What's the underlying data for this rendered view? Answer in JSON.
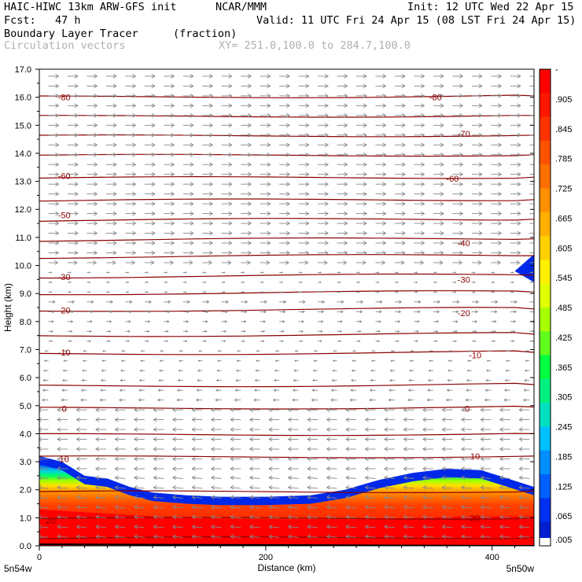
{
  "header": {
    "model": "HAIC-HIWC 13km ARW-GFS init",
    "org": "NCAR/MMM",
    "init": "Init: 12 UTC Wed 22 Apr 15",
    "fcst": "Fcst:   47 h",
    "valid": "Valid: 11 UTC Fri 24 Apr 15 (08 LST Fri 24 Apr 15)",
    "field": "Boundary Layer Tracer",
    "units": "(fraction)",
    "vectors": "Circulation vectors",
    "xy": "XY= 251.0,100.0 to 284.7,100.0"
  },
  "chart_data": {
    "type": "heatmap",
    "xlabel": "Distance (km)",
    "ylabel": "Height (km)",
    "xlim": [
      0,
      437
    ],
    "ylim": [
      0,
      17
    ],
    "x_ticks": [
      0,
      200,
      400
    ],
    "y_ticks": [
      "0.0",
      "1.0",
      "2.0",
      "3.0",
      "4.0",
      "5.0",
      "6.0",
      "7.0",
      "8.0",
      "9.0",
      "10.0",
      "11.0",
      "12.0",
      "13.0",
      "14.0",
      "15.0",
      "16.0",
      "17.0"
    ],
    "endpoint_left": "5n54w",
    "endpoint_right": "5n50w",
    "colorbar_labels": [
      "-",
      ".905",
      ".845",
      ".785",
      ".725",
      ".665",
      ".605",
      ".545",
      ".485",
      ".425",
      ".365",
      ".305",
      ".245",
      ".185",
      ".125",
      ".065",
      ".005"
    ],
    "colorbar_colors": [
      "#ff0000",
      "#ff1800",
      "#ff3400",
      "#ff5200",
      "#ff7000",
      "#ff9000",
      "#ffb000",
      "#ffd000",
      "#fff000",
      "#e0ff00",
      "#a8ff00",
      "#60ff20",
      "#00ff40",
      "#00f080",
      "#00e0c0",
      "#00c0ff",
      "#0090ff",
      "#0060ff",
      "#0030f0",
      "#0020d0"
    ],
    "contour_color": "#8b0000",
    "vector_color": "#888888",
    "temperature_contour_labels": [
      {
        "label": "-80",
        "km": 16.0,
        "x": 22
      },
      {
        "label": "-80",
        "km": 16.0,
        "x": 350
      },
      {
        "label": "-70",
        "km": 14.7,
        "x": 375
      },
      {
        "label": "-60",
        "km": 13.2,
        "x": 22
      },
      {
        "label": "-60",
        "km": 13.1,
        "x": 365
      },
      {
        "label": "-50",
        "km": 11.8,
        "x": 22
      },
      {
        "label": "-40",
        "km": 10.8,
        "x": 375
      },
      {
        "label": "-30",
        "km": 9.6,
        "x": 22
      },
      {
        "label": "-30",
        "km": 9.5,
        "x": 375
      },
      {
        "label": "-20",
        "km": 8.4,
        "x": 22
      },
      {
        "label": "-20",
        "km": 8.3,
        "x": 375
      },
      {
        "label": "-10",
        "km": 6.9,
        "x": 22
      },
      {
        "label": "-10",
        "km": 6.8,
        "x": 385
      },
      {
        "label": "0",
        "km": 4.9,
        "x": 22
      },
      {
        "label": "0",
        "km": 4.9,
        "x": 378
      },
      {
        "label": "10",
        "km": 3.1,
        "x": 22
      },
      {
        "label": "10",
        "km": 3.2,
        "x": 385
      },
      {
        "label": "20",
        "km": 0.9,
        "x": 10
      },
      {
        "label": "20",
        "km": 1.0,
        "x": 385
      }
    ],
    "temperature_contour_levels_km": [
      0.25,
      0.95,
      1.9,
      3.15,
      3.95,
      4.9,
      5.7,
      6.85,
      7.5,
      8.4,
      9.0,
      9.6,
      10.3,
      10.9,
      11.6,
      12.3,
      13.1,
      13.9,
      14.6,
      15.3,
      16.0
    ],
    "blue_envelope_top_km": [
      [
        0,
        3.2
      ],
      [
        20,
        3.0
      ],
      [
        40,
        2.5
      ],
      [
        60,
        2.4
      ],
      [
        80,
        2.1
      ],
      [
        100,
        1.9
      ],
      [
        130,
        1.8
      ],
      [
        160,
        1.75
      ],
      [
        200,
        1.75
      ],
      [
        240,
        1.8
      ],
      [
        270,
        2.0
      ],
      [
        300,
        2.35
      ],
      [
        330,
        2.6
      ],
      [
        360,
        2.75
      ],
      [
        390,
        2.7
      ],
      [
        410,
        2.45
      ],
      [
        437,
        2.1
      ]
    ],
    "red_core_top_km": [
      [
        0,
        1.3
      ],
      [
        60,
        1.15
      ],
      [
        120,
        1.0
      ],
      [
        200,
        0.95
      ],
      [
        300,
        0.95
      ],
      [
        380,
        1.05
      ],
      [
        437,
        1.05
      ]
    ]
  }
}
